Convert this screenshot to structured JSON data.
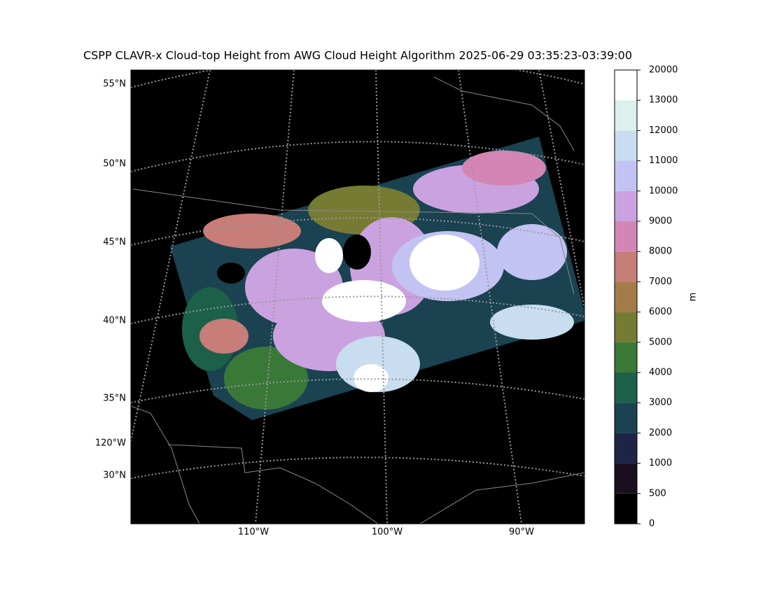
{
  "title": "CSPP CLAVR-x Cloud-top Height from AWG Cloud Height Algorithm 2025-06-29 03:35:23-03:39:00",
  "map": {
    "lat_labels": [
      "55°N",
      "50°N",
      "45°N",
      "40°N",
      "35°N",
      "120°W",
      "30°N"
    ],
    "lon_labels": [
      "110°W",
      "100°W",
      "90°W"
    ]
  },
  "colorbar": {
    "label": "m",
    "bounds": [
      0,
      500,
      1000,
      2000,
      3000,
      4000,
      5000,
      6000,
      7000,
      8000,
      9000,
      10000,
      11000,
      12000,
      13000,
      20000
    ],
    "colors": [
      "#000000",
      "#1a0f1f",
      "#1d2447",
      "#1a4250",
      "#1d6049",
      "#3a7838",
      "#767b34",
      "#a37b4a",
      "#c77d78",
      "#d386b6",
      "#cba2e0",
      "#c2c3f2",
      "#c8ddf0",
      "#dcf0ed",
      "#ffffff"
    ]
  }
}
